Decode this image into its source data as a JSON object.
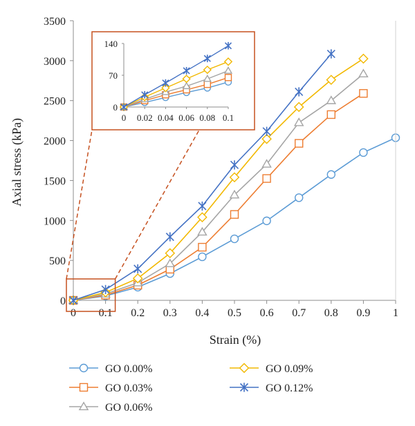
{
  "chart_data": {
    "type": "line",
    "title": "",
    "xlabel": "Strain (%)",
    "ylabel": "Axial stress (kPa)",
    "xlim": [
      0,
      1
    ],
    "ylim": [
      0,
      3500
    ],
    "x_ticks": [
      "0",
      "0.1",
      "0.2",
      "0.3",
      "0.4",
      "0.5",
      "0.6",
      "0.7",
      "0.8",
      "0.9",
      "1"
    ],
    "y_ticks": [
      "0",
      "500",
      "1000",
      "1500",
      "2000",
      "2500",
      "3000",
      "3500"
    ],
    "grid": false,
    "legend_position": "bottom",
    "series": [
      {
        "name": "GO 0.00%",
        "color": "#5B9BD5",
        "marker": "circle",
        "x": [
          0,
          0.1,
          0.2,
          0.3,
          0.4,
          0.5,
          0.6,
          0.7,
          0.8,
          0.9,
          1
        ],
        "y": [
          0,
          55,
          165,
          335,
          545,
          770,
          995,
          1285,
          1575,
          1850,
          2035
        ]
      },
      {
        "name": "GO 0.03%",
        "color": "#ED7D31",
        "marker": "square",
        "x": [
          0,
          0.1,
          0.2,
          0.3,
          0.4,
          0.5,
          0.6,
          0.7,
          0.8,
          0.9
        ],
        "y": [
          0,
          65,
          190,
          390,
          665,
          1075,
          1525,
          1965,
          2325,
          2590
        ]
      },
      {
        "name": "GO 0.06%",
        "color": "#A5A5A5",
        "marker": "triangle",
        "x": [
          0,
          0.1,
          0.2,
          0.3,
          0.4,
          0.5,
          0.6,
          0.7,
          0.8,
          0.9
        ],
        "y": [
          0,
          80,
          220,
          460,
          855,
          1320,
          1705,
          2225,
          2500,
          2835
        ]
      },
      {
        "name": "GO 0.09%",
        "color": "#F2B800",
        "marker": "diamond",
        "x": [
          0,
          0.1,
          0.2,
          0.3,
          0.4,
          0.5,
          0.6,
          0.7,
          0.8,
          0.9
        ],
        "y": [
          0,
          100,
          275,
          590,
          1040,
          1540,
          2020,
          2420,
          2760,
          3025
        ]
      },
      {
        "name": "GO 0.12%",
        "color": "#4472C4",
        "marker": "asterisk",
        "x": [
          0,
          0.1,
          0.2,
          0.3,
          0.4,
          0.5,
          0.6,
          0.7,
          0.8
        ],
        "y": [
          0,
          135,
          395,
          795,
          1180,
          1695,
          2115,
          2610,
          3085
        ]
      }
    ],
    "inset": {
      "xlim": [
        0,
        0.1
      ],
      "ylim": [
        0,
        140
      ],
      "x_ticks": [
        "0",
        "0.02",
        "0.04",
        "0.06",
        "0.08",
        "0.1"
      ],
      "y_ticks": [
        "0",
        "70",
        "140"
      ],
      "series": [
        {
          "name": "GO 0.00%",
          "x": [
            0,
            0.02,
            0.04,
            0.06,
            0.08,
            0.1
          ],
          "y": [
            0,
            10,
            21,
            32,
            42,
            55
          ]
        },
        {
          "name": "GO 0.03%",
          "x": [
            0,
            0.02,
            0.04,
            0.06,
            0.08,
            0.1
          ],
          "y": [
            0,
            14,
            27,
            38,
            50,
            65
          ]
        },
        {
          "name": "GO 0.06%",
          "x": [
            0,
            0.02,
            0.04,
            0.06,
            0.08,
            0.1
          ],
          "y": [
            0,
            17,
            33,
            46,
            62,
            80
          ]
        },
        {
          "name": "GO 0.09%",
          "x": [
            0,
            0.02,
            0.04,
            0.06,
            0.08,
            0.1
          ],
          "y": [
            0,
            22,
            42,
            62,
            82,
            100
          ]
        },
        {
          "name": "GO 0.12%",
          "x": [
            0,
            0.02,
            0.04,
            0.06,
            0.08,
            0.1
          ],
          "y": [
            0,
            27,
            53,
            80,
            107,
            135
          ]
        }
      ]
    }
  },
  "style": {
    "highlight_color": "#C5501F",
    "axis_color": "#8C8C8C"
  }
}
